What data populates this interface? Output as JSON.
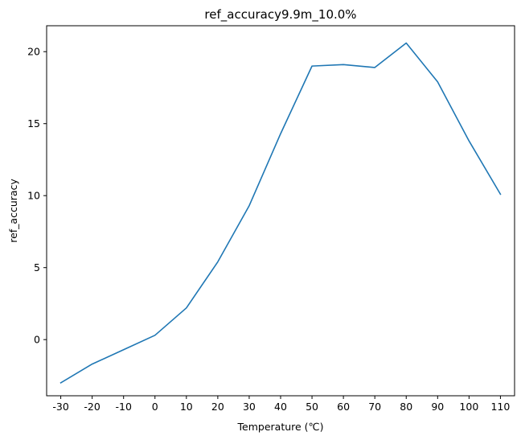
{
  "chart_data": {
    "type": "line",
    "title": "ref_accuracy9.9m_10.0%",
    "xlabel": "Temperature (℃)",
    "ylabel": "ref_accuracy",
    "x": [
      -30,
      -20,
      -10,
      0,
      10,
      20,
      30,
      40,
      50,
      60,
      70,
      80,
      90,
      100,
      110
    ],
    "x_tick_labels": [
      "-30",
      "-20",
      "-10",
      "0",
      "10",
      "20",
      "30",
      "40",
      "50",
      "60",
      "70",
      "80",
      "90",
      "100",
      "110"
    ],
    "series": [
      {
        "values": [
          -3.0,
          -1.7,
          -0.7,
          0.3,
          2.2,
          5.4,
          9.3,
          14.3,
          19.0,
          19.1,
          18.9,
          20.6,
          17.9,
          13.8,
          10.1
        ],
        "color": "#1f77b4"
      }
    ],
    "y_ticks": [
      0,
      5,
      10,
      15,
      20
    ],
    "y_tick_labels": [
      "0",
      "5",
      "10",
      "15",
      "20"
    ],
    "xlim": [
      -34.5,
      114.5
    ],
    "ylim": [
      -3.9,
      21.8
    ],
    "grid": false,
    "legend": "none"
  }
}
